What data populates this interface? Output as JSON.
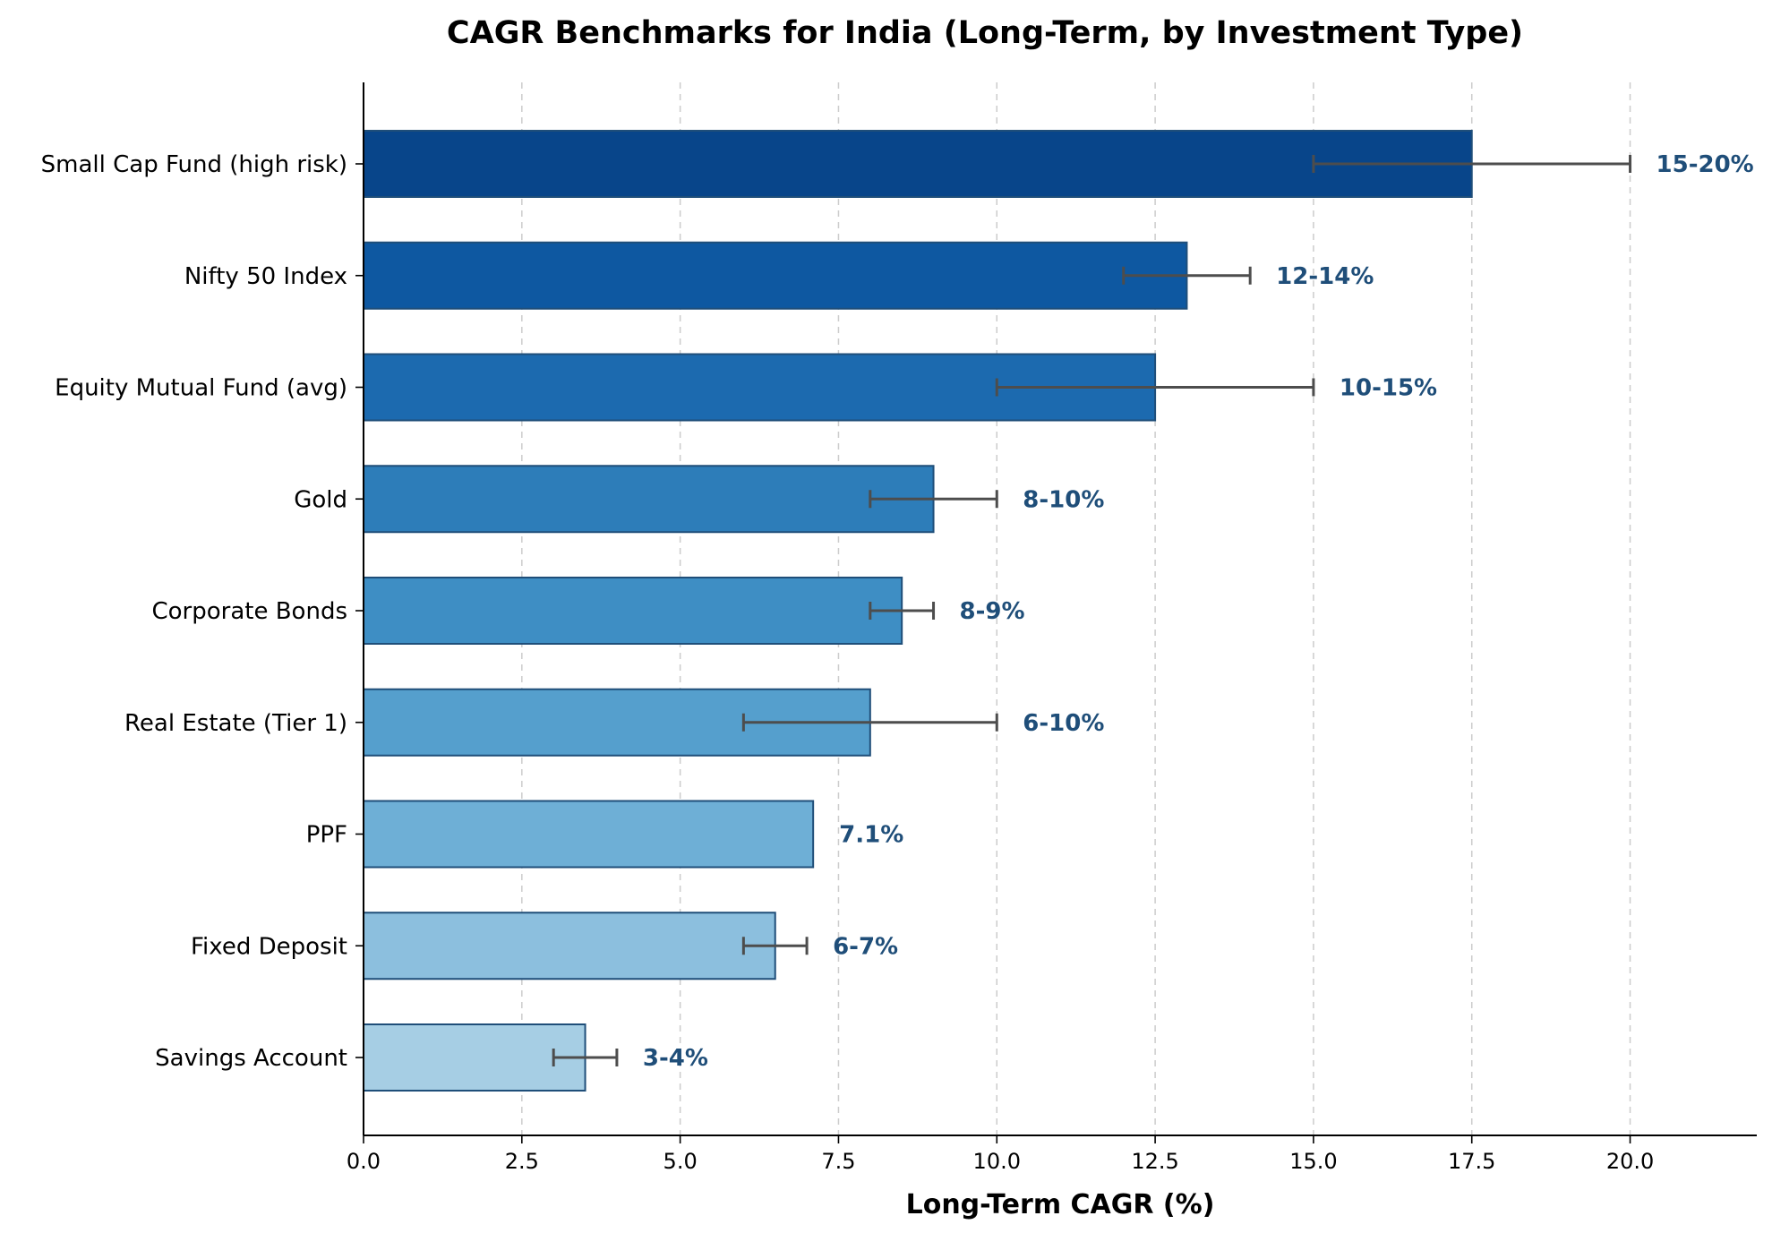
{
  "chart_data": {
    "type": "bar",
    "orientation": "horizontal",
    "title": "CAGR Benchmarks for India (Long-Term, by Investment Type)",
    "xlabel": "Long-Term CAGR (%)",
    "ylabel": "",
    "xlim": [
      0,
      22
    ],
    "xticks": [
      "0.0",
      "2.5",
      "5.0",
      "7.5",
      "10.0",
      "12.5",
      "15.0",
      "17.5",
      "20.0"
    ],
    "grid": "x-dashed",
    "categories": [
      "Savings Account",
      "Fixed Deposit",
      "PPF",
      "Real Estate (Tier 1)",
      "Corporate Bonds",
      "Gold",
      "Equity Mutual Fund (avg)",
      "Nifty 50 Index",
      "Small Cap Fund (high risk)"
    ],
    "values": [
      3.5,
      6.5,
      7.1,
      8.0,
      8.5,
      9.0,
      12.5,
      13.0,
      17.5
    ],
    "range_low": [
      3,
      6,
      null,
      6,
      8,
      8,
      10,
      12,
      15
    ],
    "range_high": [
      4,
      7,
      null,
      10,
      9,
      10,
      15,
      14,
      20
    ],
    "labels": [
      "3-4%",
      "6-7%",
      "7.1%",
      "6-10%",
      "8-9%",
      "8-10%",
      "10-15%",
      "12-14%",
      "15-20%"
    ],
    "colors": [
      "#a6cee4",
      "#8cbfde",
      "#6eafd6",
      "#559fcd",
      "#3e8ec4",
      "#2d7db9",
      "#1c6aaf",
      "#0e58a1",
      "#08458a"
    ],
    "edge_color": "#1f4e79",
    "errorbar_color": "#4d4d4d"
  }
}
